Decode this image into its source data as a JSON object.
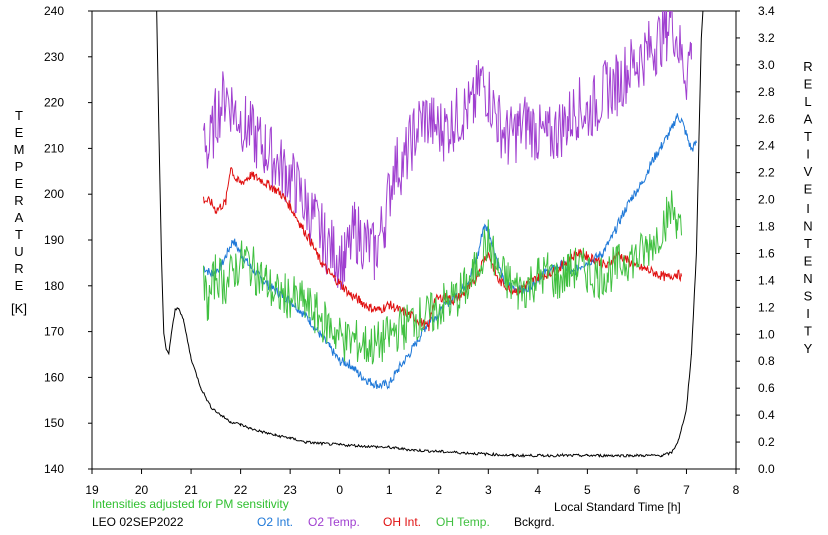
{
  "chart_data": {
    "type": "line",
    "left_axis": {
      "label_letters": [
        "T",
        "E",
        "M",
        "P",
        "E",
        "R",
        "A",
        "T",
        "U",
        "R",
        "E"
      ],
      "unit": "[K]",
      "ticks": [
        "140",
        "150",
        "160",
        "170",
        "180",
        "190",
        "200",
        "210",
        "220",
        "230",
        "240"
      ],
      "ylim": [
        140,
        240
      ]
    },
    "right_axis": {
      "label_letters_1": [
        "R",
        "E",
        "L",
        "A",
        "T",
        "I",
        "V",
        "E"
      ],
      "label_letters_2": [
        "I",
        "N",
        "T",
        "E",
        "N",
        "S",
        "I",
        "T",
        "Y"
      ],
      "ticks": [
        "0.0",
        "0.2",
        "0.4",
        "0.6",
        "0.8",
        "1.0",
        "1.2",
        "1.4",
        "1.6",
        "1.8",
        "2.0",
        "2.2",
        "2.4",
        "2.6",
        "2.8",
        "3.0",
        "3.2",
        "3.4"
      ],
      "ylim": [
        0,
        3.4
      ]
    },
    "x_axis": {
      "label": "Local Standard Time [h]",
      "ticks": [
        "19",
        "20",
        "21",
        "22",
        "23",
        "0",
        "1",
        "2",
        "3",
        "4",
        "5",
        "6",
        "7",
        "8"
      ],
      "xlim": [
        19,
        32
      ]
    },
    "note": "Intensities adjusted for PM sensitivity",
    "station": "LEO 02SEP2022",
    "grid": false,
    "series": [
      {
        "name": "O2 Int.",
        "axis": "right",
        "color": "#1e78d8",
        "points": [
          [
            21.25,
            1.5
          ],
          [
            21.4,
            1.45
          ],
          [
            21.6,
            1.5
          ],
          [
            21.85,
            1.7
          ],
          [
            22.0,
            1.6
          ],
          [
            22.2,
            1.5
          ],
          [
            22.4,
            1.42
          ],
          [
            22.6,
            1.35
          ],
          [
            22.8,
            1.3
          ],
          [
            23.0,
            1.25
          ],
          [
            23.2,
            1.18
          ],
          [
            23.4,
            1.1
          ],
          [
            23.6,
            1.0
          ],
          [
            23.8,
            0.9
          ],
          [
            24.0,
            0.8
          ],
          [
            24.2,
            0.78
          ],
          [
            24.4,
            0.7
          ],
          [
            24.6,
            0.65
          ],
          [
            24.8,
            0.62
          ],
          [
            25.0,
            0.63
          ],
          [
            25.2,
            0.75
          ],
          [
            25.4,
            0.85
          ],
          [
            25.6,
            0.97
          ],
          [
            25.8,
            1.1
          ],
          [
            26.0,
            1.15
          ],
          [
            26.2,
            1.24
          ],
          [
            26.4,
            1.3
          ],
          [
            26.6,
            1.4
          ],
          [
            26.8,
            1.6
          ],
          [
            26.9,
            1.8
          ],
          [
            27.0,
            1.78
          ],
          [
            27.1,
            1.65
          ],
          [
            27.3,
            1.4
          ],
          [
            27.5,
            1.35
          ],
          [
            27.7,
            1.32
          ],
          [
            27.9,
            1.38
          ],
          [
            28.1,
            1.45
          ],
          [
            28.3,
            1.48
          ],
          [
            28.5,
            1.52
          ],
          [
            28.7,
            1.45
          ],
          [
            28.9,
            1.52
          ],
          [
            29.1,
            1.55
          ],
          [
            29.3,
            1.6
          ],
          [
            29.5,
            1.72
          ],
          [
            29.7,
            1.88
          ],
          [
            29.9,
            2.02
          ],
          [
            30.1,
            2.12
          ],
          [
            30.3,
            2.28
          ],
          [
            30.5,
            2.4
          ],
          [
            30.7,
            2.52
          ],
          [
            30.8,
            2.62
          ],
          [
            30.9,
            2.59
          ],
          [
            31.0,
            2.48
          ],
          [
            31.1,
            2.37
          ],
          [
            31.2,
            2.42
          ]
        ]
      },
      {
        "name": "O2 Temp.",
        "axis": "left",
        "color": "#a040d0",
        "points": [
          [
            21.25,
            215
          ],
          [
            21.35,
            209
          ],
          [
            21.5,
            217
          ],
          [
            21.7,
            222
          ],
          [
            21.9,
            218
          ],
          [
            22.1,
            215
          ],
          [
            22.3,
            212
          ],
          [
            22.5,
            210
          ],
          [
            22.7,
            207
          ],
          [
            22.9,
            205
          ],
          [
            23.1,
            202
          ],
          [
            23.3,
            198
          ],
          [
            23.5,
            194
          ],
          [
            23.7,
            190
          ],
          [
            23.9,
            187
          ],
          [
            24.1,
            185
          ],
          [
            24.3,
            192
          ],
          [
            24.5,
            190
          ],
          [
            24.7,
            187
          ],
          [
            24.9,
            194
          ],
          [
            25.1,
            206
          ],
          [
            25.3,
            207
          ],
          [
            25.5,
            213
          ],
          [
            25.7,
            217
          ],
          [
            25.9,
            215
          ],
          [
            26.1,
            214
          ],
          [
            26.3,
            216
          ],
          [
            26.5,
            218
          ],
          [
            26.7,
            219
          ],
          [
            26.85,
            225
          ],
          [
            27.0,
            222
          ],
          [
            27.2,
            216
          ],
          [
            27.4,
            212
          ],
          [
            27.6,
            214
          ],
          [
            27.8,
            216
          ],
          [
            28.0,
            213
          ],
          [
            28.2,
            212
          ],
          [
            28.4,
            214
          ],
          [
            28.6,
            216
          ],
          [
            28.8,
            219
          ],
          [
            29.0,
            218
          ],
          [
            29.2,
            220
          ],
          [
            29.4,
            223
          ],
          [
            29.6,
            224
          ],
          [
            29.8,
            227
          ],
          [
            30.0,
            229
          ],
          [
            30.2,
            231
          ],
          [
            30.4,
            233
          ],
          [
            30.6,
            236
          ],
          [
            30.7,
            239
          ],
          [
            30.85,
            232
          ],
          [
            31.0,
            226
          ],
          [
            31.1,
            233
          ]
        ]
      },
      {
        "name": "OH Int.",
        "axis": "right",
        "color": "#e01010",
        "points": [
          [
            21.25,
            2.0
          ],
          [
            21.4,
            1.98
          ],
          [
            21.5,
            1.92
          ],
          [
            21.7,
            1.98
          ],
          [
            21.8,
            2.25
          ],
          [
            21.9,
            2.15
          ],
          [
            22.0,
            2.12
          ],
          [
            22.2,
            2.18
          ],
          [
            22.4,
            2.15
          ],
          [
            22.6,
            2.1
          ],
          [
            22.8,
            2.05
          ],
          [
            23.0,
            1.95
          ],
          [
            23.2,
            1.82
          ],
          [
            23.4,
            1.7
          ],
          [
            23.6,
            1.55
          ],
          [
            23.8,
            1.45
          ],
          [
            24.0,
            1.38
          ],
          [
            24.2,
            1.3
          ],
          [
            24.4,
            1.25
          ],
          [
            24.6,
            1.2
          ],
          [
            24.8,
            1.18
          ],
          [
            25.0,
            1.22
          ],
          [
            25.2,
            1.18
          ],
          [
            25.4,
            1.15
          ],
          [
            25.6,
            1.1
          ],
          [
            25.8,
            1.05
          ],
          [
            25.9,
            1.25
          ],
          [
            26.1,
            1.28
          ],
          [
            26.3,
            1.25
          ],
          [
            26.5,
            1.3
          ],
          [
            26.7,
            1.38
          ],
          [
            26.9,
            1.55
          ],
          [
            27.0,
            1.6
          ],
          [
            27.2,
            1.4
          ],
          [
            27.4,
            1.35
          ],
          [
            27.6,
            1.32
          ],
          [
            27.8,
            1.38
          ],
          [
            28.0,
            1.42
          ],
          [
            28.2,
            1.45
          ],
          [
            28.4,
            1.48
          ],
          [
            28.6,
            1.55
          ],
          [
            28.8,
            1.6
          ],
          [
            29.0,
            1.58
          ],
          [
            29.2,
            1.55
          ],
          [
            29.4,
            1.5
          ],
          [
            29.6,
            1.6
          ],
          [
            29.8,
            1.55
          ],
          [
            30.0,
            1.5
          ],
          [
            30.2,
            1.48
          ],
          [
            30.4,
            1.45
          ],
          [
            30.6,
            1.42
          ],
          [
            30.8,
            1.45
          ],
          [
            30.9,
            1.43
          ]
        ]
      },
      {
        "name": "OH Temp.",
        "axis": "left",
        "color": "#40c040",
        "points": [
          [
            21.25,
            180
          ],
          [
            21.35,
            176
          ],
          [
            21.5,
            183
          ],
          [
            21.7,
            180
          ],
          [
            21.9,
            184
          ],
          [
            22.1,
            186
          ],
          [
            22.3,
            183
          ],
          [
            22.5,
            181
          ],
          [
            22.7,
            178
          ],
          [
            22.9,
            178
          ],
          [
            23.1,
            177
          ],
          [
            23.3,
            176
          ],
          [
            23.5,
            174
          ],
          [
            23.7,
            172
          ],
          [
            23.9,
            170
          ],
          [
            24.1,
            168
          ],
          [
            24.3,
            168
          ],
          [
            24.5,
            167
          ],
          [
            24.7,
            167
          ],
          [
            24.9,
            168
          ],
          [
            25.1,
            170
          ],
          [
            25.3,
            171
          ],
          [
            25.5,
            173
          ],
          [
            25.7,
            173
          ],
          [
            25.9,
            174
          ],
          [
            26.1,
            176
          ],
          [
            26.3,
            177
          ],
          [
            26.5,
            179
          ],
          [
            26.7,
            182
          ],
          [
            26.9,
            188
          ],
          [
            27.0,
            190
          ],
          [
            27.2,
            183
          ],
          [
            27.4,
            181
          ],
          [
            27.6,
            179
          ],
          [
            27.8,
            180
          ],
          [
            28.0,
            182
          ],
          [
            28.2,
            183
          ],
          [
            28.4,
            181
          ],
          [
            28.6,
            183
          ],
          [
            28.8,
            184
          ],
          [
            29.0,
            183
          ],
          [
            29.2,
            182
          ],
          [
            29.4,
            183
          ],
          [
            29.6,
            184
          ],
          [
            29.8,
            186
          ],
          [
            30.0,
            186
          ],
          [
            30.2,
            188
          ],
          [
            30.4,
            191
          ],
          [
            30.6,
            195
          ],
          [
            30.7,
            197
          ],
          [
            30.8,
            195
          ],
          [
            30.9,
            191
          ]
        ]
      },
      {
        "name": "Bckgrd.",
        "axis": "right",
        "color": "#000000",
        "points": [
          [
            20.3,
            3.5
          ],
          [
            20.35,
            2.5
          ],
          [
            20.4,
            1.6
          ],
          [
            20.45,
            1.0
          ],
          [
            20.5,
            0.88
          ],
          [
            20.55,
            0.86
          ],
          [
            20.6,
            1.0
          ],
          [
            20.68,
            1.18
          ],
          [
            20.75,
            1.2
          ],
          [
            20.85,
            1.1
          ],
          [
            21.0,
            0.82
          ],
          [
            21.2,
            0.6
          ],
          [
            21.4,
            0.46
          ],
          [
            21.6,
            0.4
          ],
          [
            21.8,
            0.35
          ],
          [
            22.0,
            0.33
          ],
          [
            22.2,
            0.3
          ],
          [
            22.4,
            0.28
          ],
          [
            22.7,
            0.25
          ],
          [
            23.0,
            0.23
          ],
          [
            23.3,
            0.2
          ],
          [
            23.6,
            0.19
          ],
          [
            24.0,
            0.18
          ],
          [
            24.5,
            0.17
          ],
          [
            25.0,
            0.16
          ],
          [
            25.5,
            0.14
          ],
          [
            26.0,
            0.13
          ],
          [
            26.5,
            0.12
          ],
          [
            27.0,
            0.11
          ],
          [
            27.5,
            0.1
          ],
          [
            28.0,
            0.1
          ],
          [
            28.5,
            0.1
          ],
          [
            29.0,
            0.1
          ],
          [
            29.5,
            0.1
          ],
          [
            30.0,
            0.1
          ],
          [
            30.5,
            0.1
          ],
          [
            30.7,
            0.12
          ],
          [
            30.85,
            0.22
          ],
          [
            31.0,
            0.45
          ],
          [
            31.1,
            0.85
          ],
          [
            31.2,
            1.6
          ],
          [
            31.25,
            2.4
          ],
          [
            31.3,
            3.2
          ],
          [
            31.35,
            3.5
          ]
        ]
      }
    ]
  }
}
